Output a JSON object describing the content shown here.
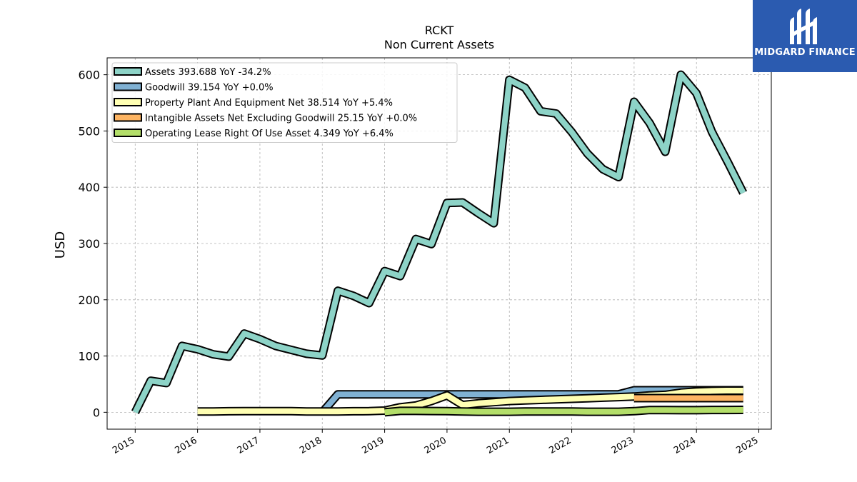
{
  "chart_data": {
    "type": "line",
    "title": "RCKT",
    "subtitle": "Non Current  Assets",
    "xlabel": "",
    "ylabel": "USD",
    "xlim": [
      2014.55,
      2025.2
    ],
    "ylim": [
      -30,
      630
    ],
    "x_ticks": [
      2015,
      2016,
      2017,
      2018,
      2019,
      2020,
      2021,
      2022,
      2023,
      2024,
      2025
    ],
    "x_tick_labels": [
      "2015",
      "2016",
      "2017",
      "2018",
      "2019",
      "2020",
      "2021",
      "2022",
      "2023",
      "2024",
      "2025"
    ],
    "y_ticks": [
      0,
      100,
      200,
      300,
      400,
      500,
      600
    ],
    "y_tick_labels": [
      "0",
      "100",
      "200",
      "300",
      "400",
      "500",
      "600"
    ],
    "grid": true,
    "legend_position": "top-left",
    "series": [
      {
        "name": "Assets  393.688 YoY -34.2%",
        "color": "#8dd3c7",
        "x": [
          2015.0,
          2015.25,
          2015.5,
          2015.75,
          2016.0,
          2016.25,
          2016.5,
          2016.75,
          2017.0,
          2017.25,
          2017.5,
          2017.75,
          2018.0,
          2018.25,
          2018.5,
          2018.75,
          2019.0,
          2019.25,
          2019.5,
          2019.75,
          2020.0,
          2020.25,
          2020.5,
          2020.75,
          2021.0,
          2021.25,
          2021.5,
          2021.75,
          2022.0,
          2022.25,
          2022.5,
          2022.75,
          2023.0,
          2023.25,
          2023.5,
          2023.75,
          2024.0,
          2024.25,
          2024.5,
          2024.75
        ],
        "values": [
          0,
          56,
          52,
          118,
          112,
          103,
          99,
          140,
          130,
          118,
          111,
          104,
          101,
          216,
          207,
          194,
          251,
          242,
          308,
          299,
          372,
          373,
          354,
          336,
          591,
          577,
          535,
          531,
          498,
          460,
          432,
          418,
          552,
          514,
          463,
          600,
          567,
          498,
          445,
          390
        ]
      },
      {
        "name": "Goodwill  39.154 YoY +0.0%",
        "color": "#80b1d3",
        "x": [
          2018.0,
          2018.25,
          2018.5,
          2018.75,
          2019.0,
          2019.25,
          2019.5,
          2019.75,
          2020.0,
          2020.25,
          2020.5,
          2020.75,
          2021.0,
          2021.25,
          2021.5,
          2021.75,
          2022.0,
          2022.25,
          2022.5,
          2022.75,
          2023.0,
          2023.25,
          2023.5,
          2023.75,
          2024.0,
          2024.25,
          2024.5,
          2024.75
        ],
        "values": [
          0,
          32,
          32,
          32,
          32,
          32,
          32,
          32,
          32,
          32,
          32,
          32,
          32,
          32,
          32,
          32,
          32,
          32,
          32,
          32,
          39.2,
          39.2,
          39.2,
          39.2,
          39.2,
          39.2,
          39.2,
          39.2
        ]
      },
      {
        "name": "Property Plant And Equipment Net  38.514 YoY +5.4%",
        "color": "#ffffb3",
        "x": [
          2016.0,
          2016.25,
          2016.5,
          2016.75,
          2017.0,
          2017.25,
          2017.5,
          2017.75,
          2018.0,
          2018.25,
          2018.5,
          2018.75,
          2019.0,
          2019.25,
          2019.5,
          2019.75,
          2020.0,
          2020.25,
          2020.5,
          2020.75,
          2021.0,
          2021.25,
          2021.5,
          2021.75,
          2022.0,
          2022.25,
          2022.5,
          2022.75,
          2023.0,
          2023.25,
          2023.5,
          2023.75,
          2024.0,
          2024.25,
          2024.5,
          2024.75
        ],
        "values": [
          1.5,
          1.5,
          1.8,
          2,
          2,
          2,
          2,
          1.5,
          1.5,
          1.5,
          1.8,
          2,
          3,
          9,
          12,
          20,
          30,
          13,
          16,
          18,
          20,
          21,
          22,
          23,
          24,
          25,
          26,
          27,
          28,
          30,
          31,
          35,
          37,
          38,
          38.5,
          38.5
        ]
      },
      {
        "name": "Intangible Assets Net Excluding Goodwill  25.15 YoY +0.0%",
        "color": "#fdb462",
        "x": [
          2023.0,
          2023.25,
          2023.5,
          2023.75,
          2024.0,
          2024.25,
          2024.5,
          2024.75
        ],
        "values": [
          25.15,
          25.15,
          25.15,
          25.15,
          25.15,
          25.15,
          25.15,
          25.15
        ]
      },
      {
        "name": "Operating Lease Right Of Use Asset  4.349 YoY +6.4%",
        "color": "#b3de69",
        "x": [
          2019.0,
          2019.25,
          2019.5,
          2019.75,
          2020.0,
          2020.25,
          2020.5,
          2020.75,
          2021.0,
          2021.25,
          2021.5,
          2021.75,
          2022.0,
          2022.25,
          2022.5,
          2022.75,
          2023.0,
          2023.25,
          2023.5,
          2023.75,
          2024.0,
          2024.25,
          2024.5,
          2024.75
        ],
        "values": [
          0,
          2.5,
          2.5,
          2.3,
          2.0,
          1.5,
          1.0,
          1.0,
          1.0,
          1.5,
          1.5,
          1.5,
          1.5,
          1.0,
          1.0,
          1.0,
          2.0,
          4.0,
          4.0,
          3.8,
          3.8,
          4.1,
          4.2,
          4.3
        ]
      }
    ]
  },
  "logo": {
    "text": "MIDGARD FINANCE",
    "background": "#2b5bb0"
  }
}
